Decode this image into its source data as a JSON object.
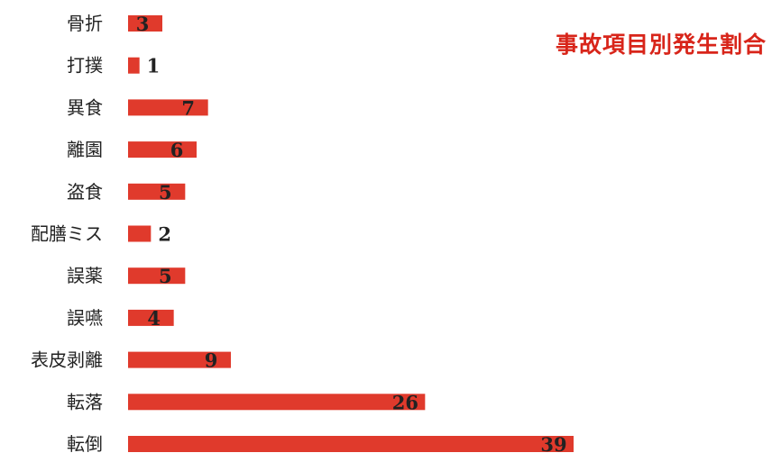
{
  "chart_data": {
    "type": "bar",
    "orientation": "horizontal",
    "title": "事故項目別発生割合",
    "categories": [
      "骨折",
      "打撲",
      "異食",
      "離園",
      "盗食",
      "配膳ミス",
      "誤薬",
      "誤嚥",
      "表皮剥離",
      "転落",
      "転倒"
    ],
    "values": [
      3,
      1,
      7,
      6,
      5,
      2,
      5,
      4,
      9,
      26,
      39
    ],
    "data_labels": [
      "3",
      "1",
      "7",
      "6",
      "5",
      "2",
      "5",
      "4",
      "9",
      "26",
      "39"
    ],
    "xlabel": "",
    "ylabel": "",
    "xlim": [
      0,
      39
    ],
    "grid": false,
    "legend": "none",
    "bar_color": "#e03a2c",
    "label_color": "#222222",
    "title_color": "#d8251a"
  }
}
